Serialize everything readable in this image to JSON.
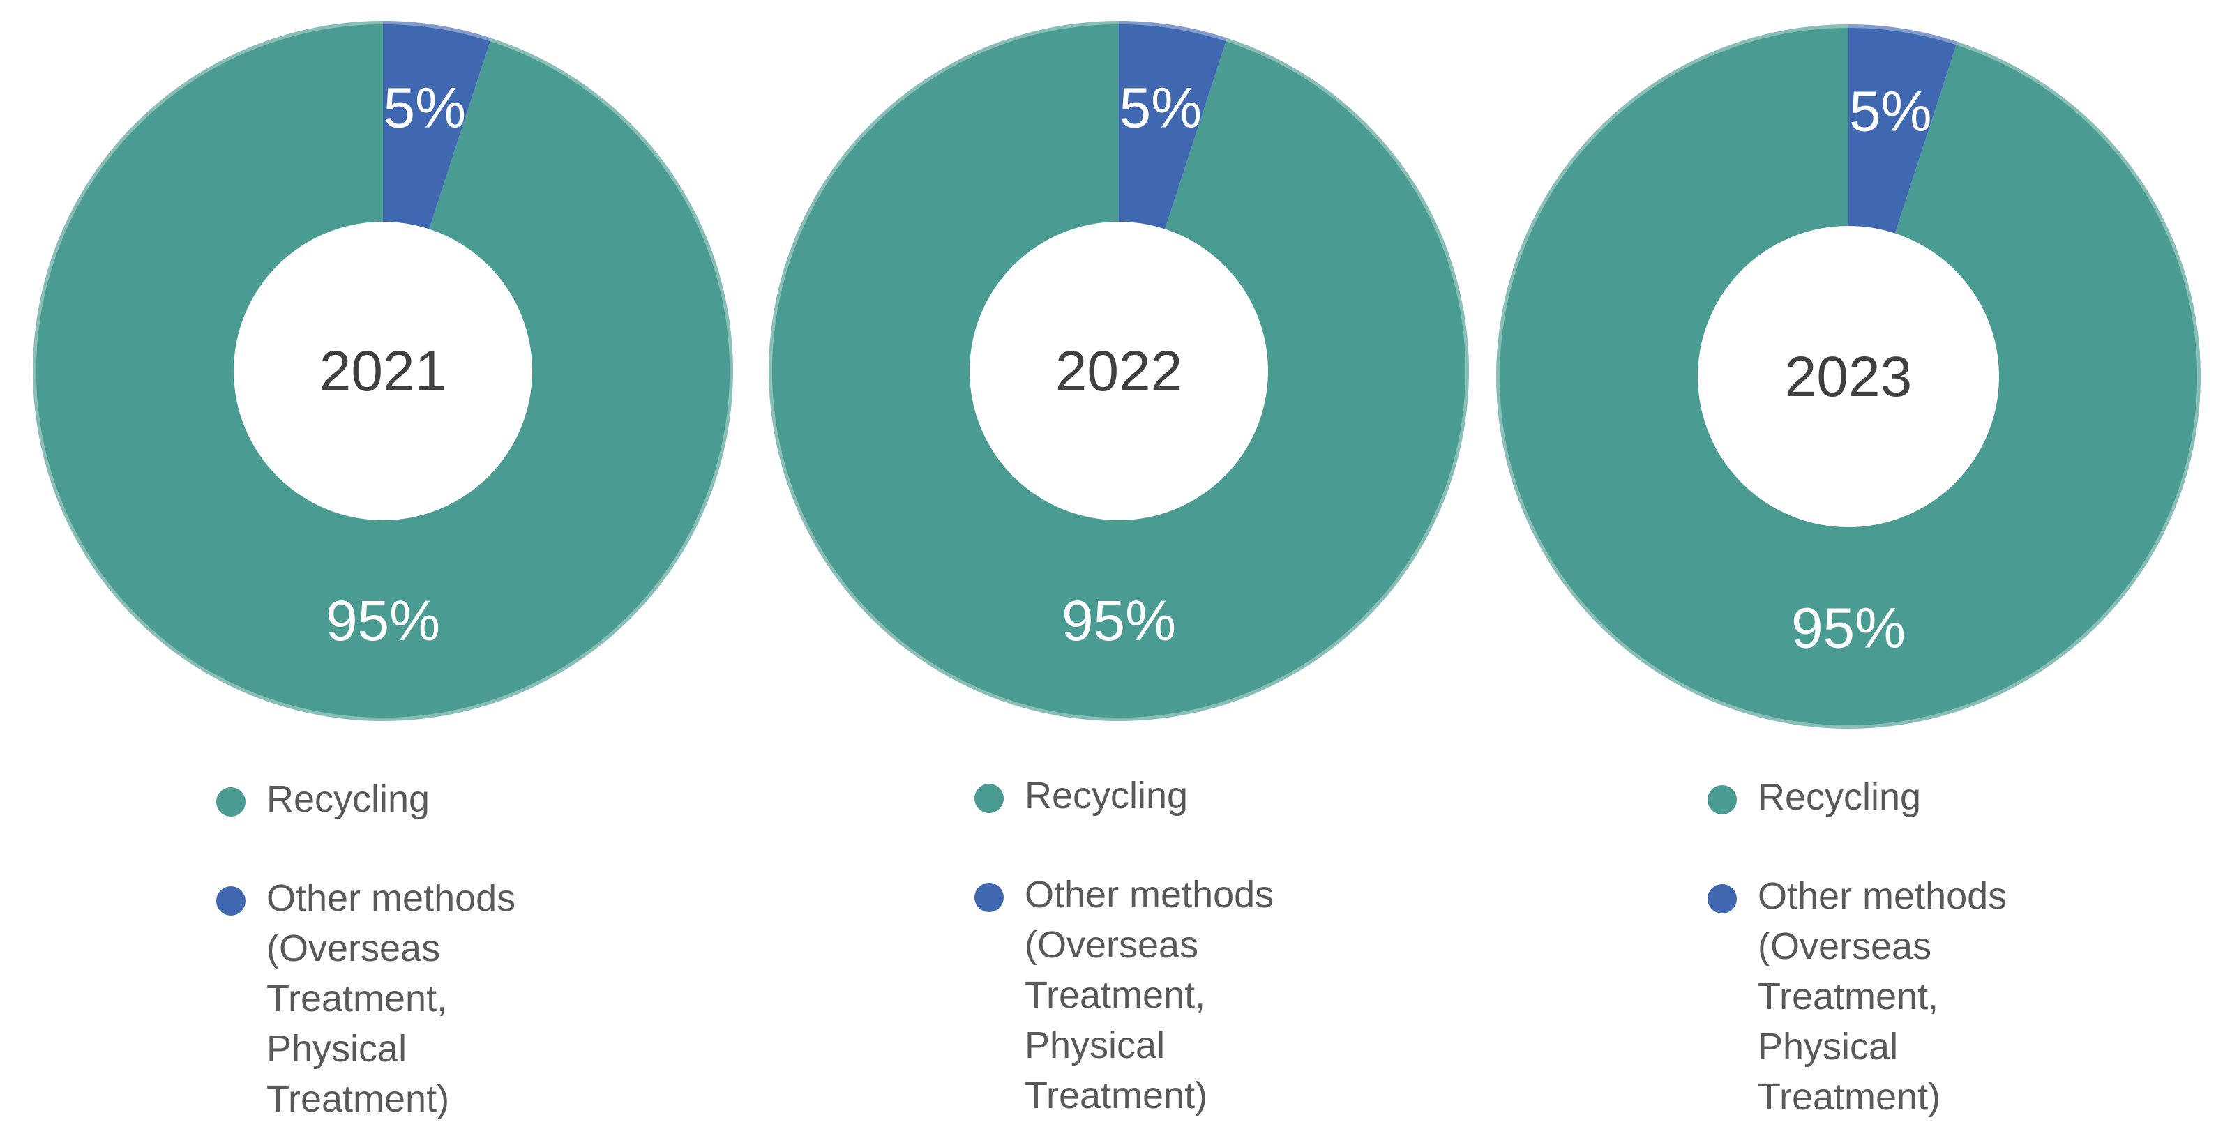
{
  "chart_data": [
    {
      "type": "pie",
      "center_label": "2021",
      "categories": [
        "Recycling",
        "Other methods (Overseas Treatment, Physical Treatment)"
      ],
      "values": [
        95,
        5
      ],
      "value_labels": [
        "95%",
        "5%"
      ],
      "colors": [
        "#4a9b91",
        "#3f68b0"
      ],
      "legend_position": "bottom"
    },
    {
      "type": "pie",
      "center_label": "2022",
      "categories": [
        "Recycling",
        "Other methods (Overseas Treatment, Physical Treatment)"
      ],
      "values": [
        95,
        5
      ],
      "value_labels": [
        "95%",
        "5%"
      ],
      "colors": [
        "#4a9b91",
        "#3f68b0"
      ],
      "legend_position": "bottom"
    },
    {
      "type": "pie",
      "center_label": "2023",
      "categories": [
        "Recycling",
        "Other methods (Overseas Treatment, Physical Treatment)"
      ],
      "values": [
        95,
        5
      ],
      "value_labels": [
        "95%",
        "5%"
      ],
      "colors": [
        "#4a9b91",
        "#3f68b0"
      ],
      "legend_position": "bottom"
    }
  ],
  "legend": {
    "items": [
      {
        "lines": [
          "Recycling"
        ],
        "color": "#4a9b91"
      },
      {
        "lines": [
          "Other methods",
          "(Overseas",
          "Treatment,",
          "Physical",
          "Treatment)"
        ],
        "color": "#3f68b0"
      }
    ]
  }
}
